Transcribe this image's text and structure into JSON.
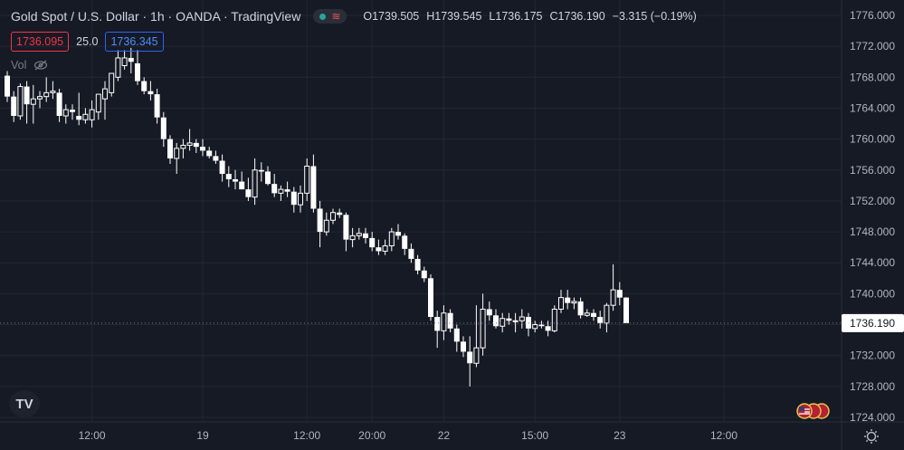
{
  "header": {
    "symbol_title": "Gold Spot / U.S. Dollar · 1h · OANDA · TradingView",
    "ohlc": [
      {
        "k": "O",
        "v": "1739.505"
      },
      {
        "k": "H",
        "v": "1739.545"
      },
      {
        "k": "L",
        "v": "1736.175"
      },
      {
        "k": "C",
        "v": "1736.190"
      }
    ],
    "change": "−3.315 (−0.19%)",
    "bid": "1736.095",
    "spread": "25.0",
    "ask": "1736.345",
    "vol_label": "Vol"
  },
  "colors": {
    "background": "#161a25",
    "grid": "#232733",
    "candle": "#ffffff",
    "bid": "#f23645",
    "ask": "#2962ff",
    "market_open": "#26a69a"
  },
  "chart_data": {
    "type": "candlestick",
    "title": "Gold Spot / U.S. Dollar · 1h · OANDA · TradingView",
    "ylim": [
      1723.5,
      1777.5
    ],
    "y_ticks": [
      "1776.000",
      "1772.000",
      "1768.000",
      "1764.000",
      "1760.000",
      "1756.000",
      "1752.000",
      "1748.000",
      "1744.000",
      "1740.000",
      "1736.000",
      "1732.000",
      "1728.000",
      "1724.000"
    ],
    "x_ticks": [
      {
        "label": "12:00",
        "index": 13
      },
      {
        "label": "19",
        "index": 30
      },
      {
        "label": "12:00",
        "index": 46
      },
      {
        "label": "20:00",
        "index": 56
      },
      {
        "label": "22",
        "index": 67
      },
      {
        "label": "15:00",
        "index": 81
      },
      {
        "label": "23",
        "index": 94
      },
      {
        "label": "12:00",
        "index": 110
      }
    ],
    "last_price": "1736.190",
    "grid": true,
    "candles": [
      [
        1768.2,
        1768.8,
        1764.8,
        1765.5
      ],
      [
        1765.5,
        1766.2,
        1762.2,
        1763.0
      ],
      [
        1763.0,
        1767.2,
        1762.5,
        1766.8
      ],
      [
        1766.8,
        1767.5,
        1762.0,
        1764.5
      ],
      [
        1764.5,
        1767.0,
        1762.0,
        1765.2
      ],
      [
        1765.2,
        1766.2,
        1764.0,
        1765.5
      ],
      [
        1765.5,
        1768.0,
        1764.8,
        1766.0
      ],
      [
        1766.0,
        1767.5,
        1765.2,
        1766.2
      ],
      [
        1766.0,
        1766.5,
        1762.2,
        1763.0
      ],
      [
        1763.0,
        1764.5,
        1762.0,
        1763.8
      ],
      [
        1763.8,
        1764.5,
        1762.5,
        1763.5
      ],
      [
        1763.0,
        1766.0,
        1761.8,
        1762.5
      ],
      [
        1762.5,
        1764.0,
        1762.0,
        1763.2
      ],
      [
        1762.5,
        1765.0,
        1761.5,
        1763.8
      ],
      [
        1763.5,
        1765.5,
        1762.5,
        1765.8
      ],
      [
        1765.2,
        1767.5,
        1762.5,
        1766.5
      ],
      [
        1766.0,
        1768.5,
        1765.5,
        1768.5
      ],
      [
        1768.0,
        1771.5,
        1767.5,
        1770.5
      ],
      [
        1769.5,
        1771.5,
        1769.0,
        1770.5
      ],
      [
        1770.5,
        1771.8,
        1768.5,
        1770.0
      ],
      [
        1769.8,
        1771.5,
        1767.0,
        1767.5
      ],
      [
        1767.5,
        1768.0,
        1765.8,
        1766.2
      ],
      [
        1766.2,
        1767.5,
        1765.0,
        1765.8
      ],
      [
        1765.8,
        1766.5,
        1762.0,
        1762.8
      ],
      [
        1762.8,
        1763.5,
        1759.0,
        1760.0
      ],
      [
        1760.0,
        1760.5,
        1756.8,
        1757.5
      ],
      [
        1757.5,
        1759.5,
        1755.5,
        1758.8
      ],
      [
        1758.8,
        1760.0,
        1757.5,
        1759.2
      ],
      [
        1759.2,
        1761.3,
        1758.5,
        1759.5
      ],
      [
        1759.5,
        1760.0,
        1758.2,
        1759.0
      ],
      [
        1759.0,
        1760.0,
        1757.8,
        1758.5
      ],
      [
        1758.5,
        1759.0,
        1757.5,
        1757.8
      ],
      [
        1757.8,
        1758.5,
        1756.8,
        1757.2
      ],
      [
        1757.2,
        1758.0,
        1754.5,
        1755.5
      ],
      [
        1755.5,
        1756.5,
        1753.8,
        1754.8
      ],
      [
        1754.8,
        1756.0,
        1753.5,
        1754.5
      ],
      [
        1754.5,
        1755.8,
        1753.5,
        1753.5
      ],
      [
        1753.5,
        1755.0,
        1752.0,
        1752.5
      ],
      [
        1752.5,
        1757.5,
        1751.5,
        1756.0
      ],
      [
        1756.0,
        1757.0,
        1754.5,
        1755.8
      ],
      [
        1755.8,
        1756.5,
        1754.0,
        1754.2
      ],
      [
        1754.2,
        1755.5,
        1752.5,
        1753.0
      ],
      [
        1753.0,
        1754.0,
        1752.0,
        1753.5
      ],
      [
        1753.5,
        1754.5,
        1752.5,
        1753.2
      ],
      [
        1753.2,
        1753.8,
        1750.5,
        1751.5
      ],
      [
        1751.5,
        1754.0,
        1750.5,
        1753.0
      ],
      [
        1753.0,
        1757.5,
        1752.0,
        1756.5
      ],
      [
        1756.5,
        1758.0,
        1750.5,
        1751.0
      ],
      [
        1751.0,
        1752.0,
        1746.0,
        1748.0
      ],
      [
        1748.0,
        1750.5,
        1747.5,
        1749.5
      ],
      [
        1749.5,
        1751.0,
        1749.0,
        1750.5
      ],
      [
        1750.5,
        1751.0,
        1749.8,
        1750.2
      ],
      [
        1750.2,
        1750.5,
        1745.5,
        1747.0
      ],
      [
        1747.0,
        1748.5,
        1746.0,
        1747.5
      ],
      [
        1747.5,
        1748.5,
        1747.0,
        1747.8
      ],
      [
        1747.8,
        1748.5,
        1746.5,
        1747.2
      ],
      [
        1747.2,
        1748.0,
        1745.5,
        1746.0
      ],
      [
        1746.0,
        1747.0,
        1745.0,
        1745.5
      ],
      [
        1745.5,
        1747.0,
        1745.0,
        1746.2
      ],
      [
        1746.2,
        1748.5,
        1745.5,
        1748.0
      ],
      [
        1748.0,
        1749.0,
        1747.0,
        1747.5
      ],
      [
        1747.5,
        1747.8,
        1745.0,
        1745.8
      ],
      [
        1745.8,
        1746.5,
        1744.0,
        1744.5
      ],
      [
        1744.5,
        1745.0,
        1742.5,
        1743.0
      ],
      [
        1743.0,
        1743.5,
        1741.5,
        1742.0
      ],
      [
        1742.0,
        1742.5,
        1736.5,
        1737.0
      ],
      [
        1737.0,
        1737.8,
        1733.0,
        1735.2
      ],
      [
        1735.2,
        1738.5,
        1734.0,
        1737.5
      ],
      [
        1737.5,
        1738.0,
        1735.0,
        1735.5
      ],
      [
        1735.5,
        1736.0,
        1732.5,
        1733.8
      ],
      [
        1733.8,
        1734.5,
        1731.8,
        1732.5
      ],
      [
        1732.5,
        1734.5,
        1728.0,
        1731.0
      ],
      [
        1731.0,
        1738.5,
        1730.5,
        1733.0
      ],
      [
        1733.0,
        1740.0,
        1732.0,
        1738.0
      ],
      [
        1738.0,
        1739.0,
        1736.5,
        1737.2
      ],
      [
        1737.2,
        1738.0,
        1735.5,
        1735.8
      ],
      [
        1735.8,
        1737.5,
        1735.0,
        1736.8
      ],
      [
        1736.8,
        1737.5,
        1736.0,
        1736.5
      ],
      [
        1736.5,
        1737.5,
        1735.0,
        1736.5
      ],
      [
        1736.5,
        1738.0,
        1735.5,
        1737.0
      ],
      [
        1737.0,
        1737.5,
        1734.5,
        1735.5
      ],
      [
        1735.5,
        1736.5,
        1735.0,
        1736.0
      ],
      [
        1736.0,
        1736.5,
        1735.5,
        1735.8
      ],
      [
        1735.8,
        1736.5,
        1734.5,
        1735.2
      ],
      [
        1735.2,
        1738.5,
        1735.0,
        1738.0
      ],
      [
        1738.0,
        1740.5,
        1737.5,
        1739.5
      ],
      [
        1739.5,
        1740.5,
        1738.0,
        1738.8
      ],
      [
        1738.8,
        1739.5,
        1738.0,
        1739.0
      ],
      [
        1739.0,
        1739.5,
        1736.8,
        1737.2
      ],
      [
        1737.2,
        1738.0,
        1737.0,
        1737.5
      ],
      [
        1737.5,
        1738.0,
        1736.5,
        1737.0
      ],
      [
        1737.0,
        1737.8,
        1735.5,
        1736.2
      ],
      [
        1736.2,
        1738.8,
        1735.0,
        1738.5
      ],
      [
        1738.5,
        1743.8,
        1737.8,
        1740.5
      ],
      [
        1740.5,
        1741.5,
        1738.5,
        1739.5
      ],
      [
        1739.505,
        1739.545,
        1736.175,
        1736.19
      ]
    ]
  }
}
